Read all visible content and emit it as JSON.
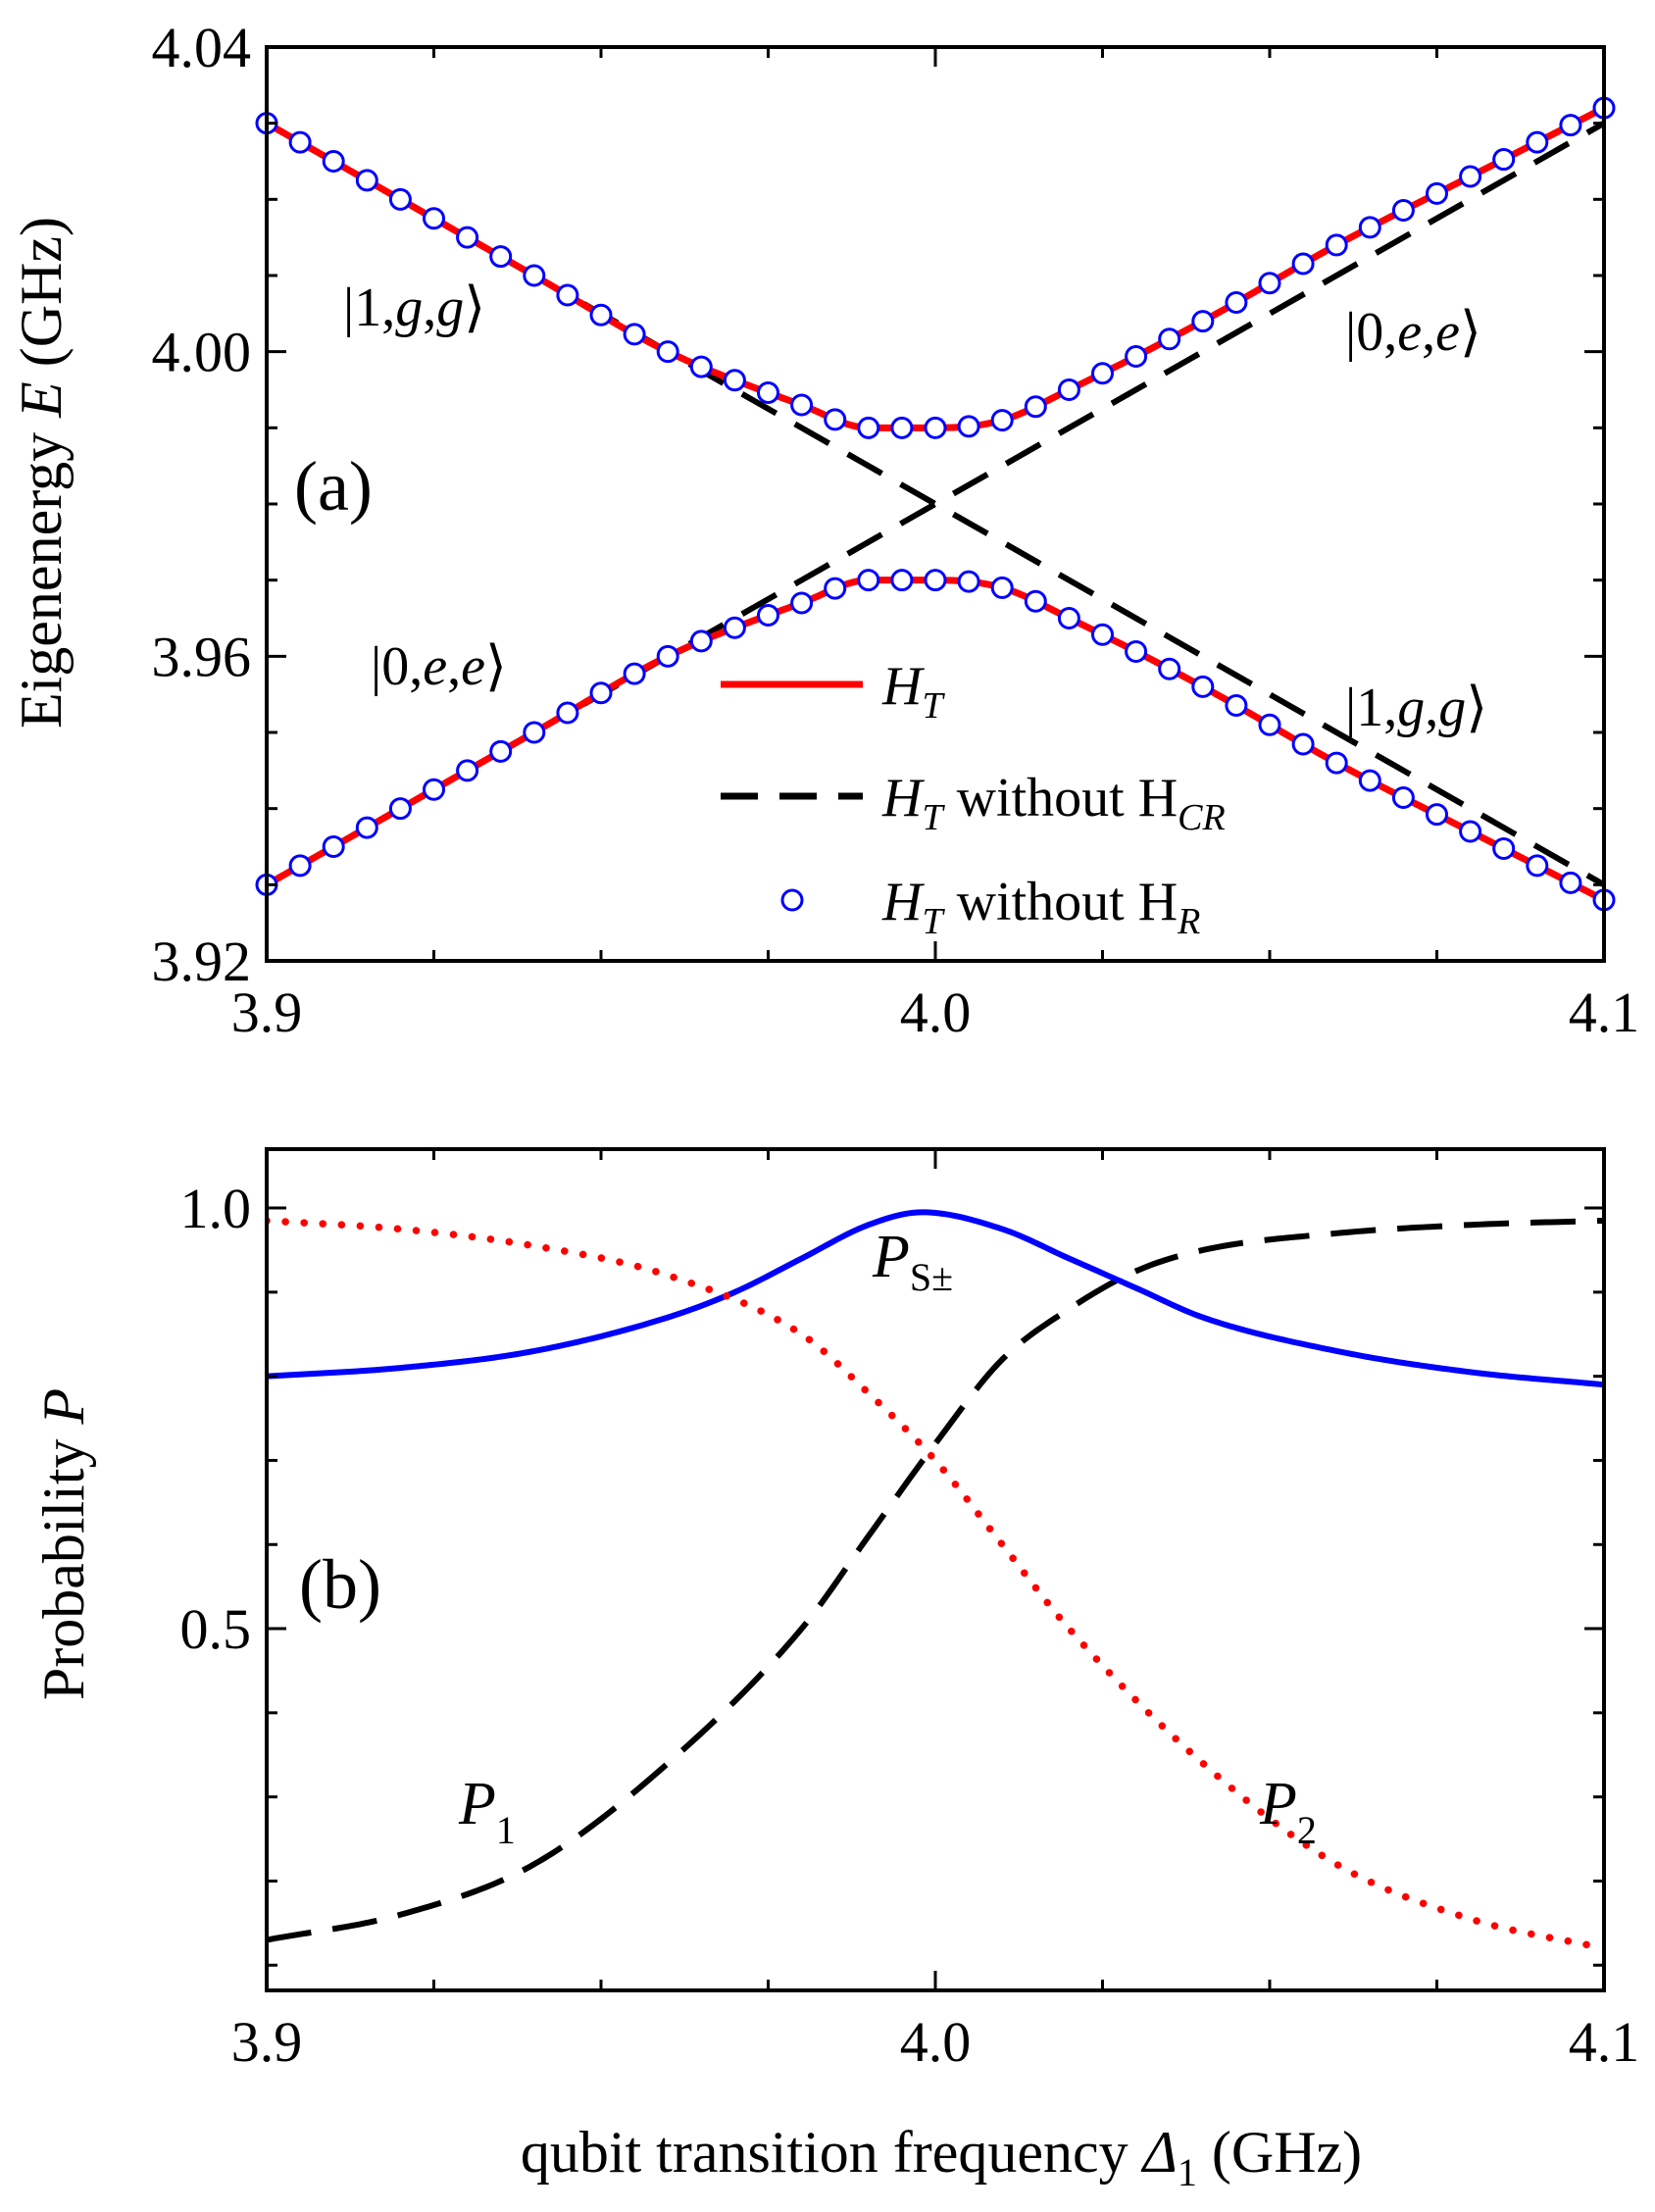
{
  "chart_data": [
    {
      "panel": "(a)",
      "type": "line",
      "xlabel": "",
      "ylabel": {
        "text": "Eigenenergy ",
        "var": "E",
        "unit": " (GHz)"
      },
      "xlim": [
        3.9,
        4.1
      ],
      "ylim": [
        3.92,
        4.04
      ],
      "xticks": [
        "3.9",
        "4.0",
        "4.1"
      ],
      "yticks": [
        "3.92",
        "3.96",
        "4.00",
        "4.04"
      ],
      "grid": false,
      "legend_position": "bottom-right",
      "legend": [
        {
          "main": "H",
          "sub": "T",
          "rest": "",
          "restSub": ""
        },
        {
          "main": "H",
          "sub": "T",
          "rest": " without H",
          "restSub": "CR"
        },
        {
          "main": "H",
          "sub": "T",
          "rest": " without H",
          "restSub": "R"
        }
      ],
      "colors": {
        "H_T": "#ff0000",
        "H_T_without_H_CR": "#000000",
        "H_T_without_H_R": "#0000ff"
      },
      "state_labels": [
        {
          "pre": "|1,",
          "g1": "g",
          "mid": ",",
          "g2": "g",
          "post": "⟩",
          "position": "upper-left"
        },
        {
          "pre": "|0,",
          "g1": "e",
          "mid": ",",
          "g2": "e",
          "post": "⟩",
          "position": "upper-right"
        },
        {
          "pre": "|0,",
          "g1": "e",
          "mid": ",",
          "g2": "e",
          "post": "⟩",
          "position": "lower-left"
        },
        {
          "pre": "|1,",
          "g1": "g",
          "mid": ",",
          "g2": "g",
          "post": "⟩",
          "position": "lower-right"
        }
      ],
      "series": [
        {
          "name": "H_T upper branch",
          "style": "solid",
          "color": "#ff0000",
          "x": [
            3.9,
            3.92,
            3.94,
            3.96,
            3.98,
            3.99,
            4.0,
            4.01,
            4.02,
            4.04,
            4.06,
            4.08,
            4.1
          ],
          "y": [
            4.03,
            4.02,
            4.01,
            4.0,
            3.993,
            3.99,
            3.99,
            3.991,
            3.995,
            4.004,
            4.014,
            4.023,
            4.032
          ]
        },
        {
          "name": "H_T lower branch",
          "style": "solid",
          "color": "#ff0000",
          "x": [
            3.9,
            3.92,
            3.94,
            3.96,
            3.98,
            3.99,
            4.0,
            4.01,
            4.02,
            4.04,
            4.06,
            4.08,
            4.1
          ],
          "y": [
            3.93,
            3.94,
            3.95,
            3.96,
            3.967,
            3.97,
            3.97,
            3.969,
            3.965,
            3.956,
            3.946,
            3.937,
            3.928
          ]
        },
        {
          "name": "H_T without H_CR (|1,g,g> diabatic)",
          "style": "dashed",
          "color": "#000000",
          "x": [
            3.9,
            4.1
          ],
          "y": [
            4.03,
            3.93
          ]
        },
        {
          "name": "H_T without H_CR (|0,e,e> diabatic)",
          "style": "dashed",
          "color": "#000000",
          "x": [
            3.9,
            4.1
          ],
          "y": [
            3.93,
            4.03
          ]
        },
        {
          "name": "H_T without H_R upper branch",
          "style": "markers",
          "color": "#0000ff",
          "x": [
            3.9,
            3.92,
            3.94,
            3.96,
            3.98,
            3.99,
            4.0,
            4.01,
            4.02,
            4.04,
            4.06,
            4.08,
            4.1
          ],
          "y": [
            4.03,
            4.02,
            4.01,
            4.0,
            3.993,
            3.99,
            3.99,
            3.991,
            3.995,
            4.004,
            4.014,
            4.023,
            4.032
          ]
        },
        {
          "name": "H_T without H_R lower branch",
          "style": "markers",
          "color": "#0000ff",
          "x": [
            3.9,
            3.92,
            3.94,
            3.96,
            3.98,
            3.99,
            4.0,
            4.01,
            4.02,
            4.04,
            4.06,
            4.08,
            4.1
          ],
          "y": [
            3.93,
            3.94,
            3.95,
            3.96,
            3.967,
            3.97,
            3.97,
            3.969,
            3.965,
            3.956,
            3.946,
            3.937,
            3.928
          ]
        }
      ]
    },
    {
      "panel": "(b)",
      "type": "line",
      "xlabel": {
        "text": "qubit transition frequency ",
        "var": "Δ",
        "sub": "1",
        "unit": " (GHz)"
      },
      "ylabel": {
        "text": "Probability ",
        "var": "P",
        "unit": ""
      },
      "xlim": [
        3.9,
        4.1
      ],
      "ylim": [
        0.07,
        1.07
      ],
      "xticks": [
        "3.9",
        "4.0",
        "4.1"
      ],
      "yticks": [
        "0.5",
        "1.0"
      ],
      "grid": false,
      "curve_labels": [
        {
          "main": "P",
          "sub": "S±"
        },
        {
          "main": "P",
          "sub": "1"
        },
        {
          "main": "P",
          "sub": "2"
        }
      ],
      "colors": {
        "P_S": "#0000ff",
        "P_1": "#000000",
        "P_2": "#ff0000"
      },
      "series": [
        {
          "name": "P_S±",
          "style": "solid",
          "color": "#0000ff",
          "x": [
            3.9,
            3.92,
            3.94,
            3.96,
            3.97,
            3.98,
            3.99,
            3.998,
            4.01,
            4.02,
            4.03,
            4.04,
            4.06,
            4.08,
            4.1
          ],
          "y": [
            0.8,
            0.81,
            0.83,
            0.87,
            0.9,
            0.94,
            0.98,
            0.995,
            0.975,
            0.94,
            0.905,
            0.87,
            0.83,
            0.805,
            0.79
          ]
        },
        {
          "name": "P_1",
          "style": "dashed",
          "color": "#000000",
          "x": [
            3.9,
            3.92,
            3.94,
            3.96,
            3.98,
            3.99,
            4.0,
            4.01,
            4.02,
            4.03,
            4.04,
            4.06,
            4.08,
            4.1
          ],
          "y": [
            0.13,
            0.16,
            0.22,
            0.34,
            0.5,
            0.61,
            0.72,
            0.82,
            0.88,
            0.925,
            0.95,
            0.97,
            0.98,
            0.985
          ]
        },
        {
          "name": "P_2",
          "style": "dotted",
          "color": "#ff0000",
          "x": [
            3.9,
            3.92,
            3.94,
            3.96,
            3.98,
            3.99,
            4.0,
            4.01,
            4.02,
            4.04,
            4.06,
            4.08,
            4.1
          ],
          "y": [
            0.985,
            0.975,
            0.955,
            0.92,
            0.85,
            0.78,
            0.7,
            0.6,
            0.5,
            0.34,
            0.22,
            0.155,
            0.12
          ]
        }
      ]
    }
  ]
}
